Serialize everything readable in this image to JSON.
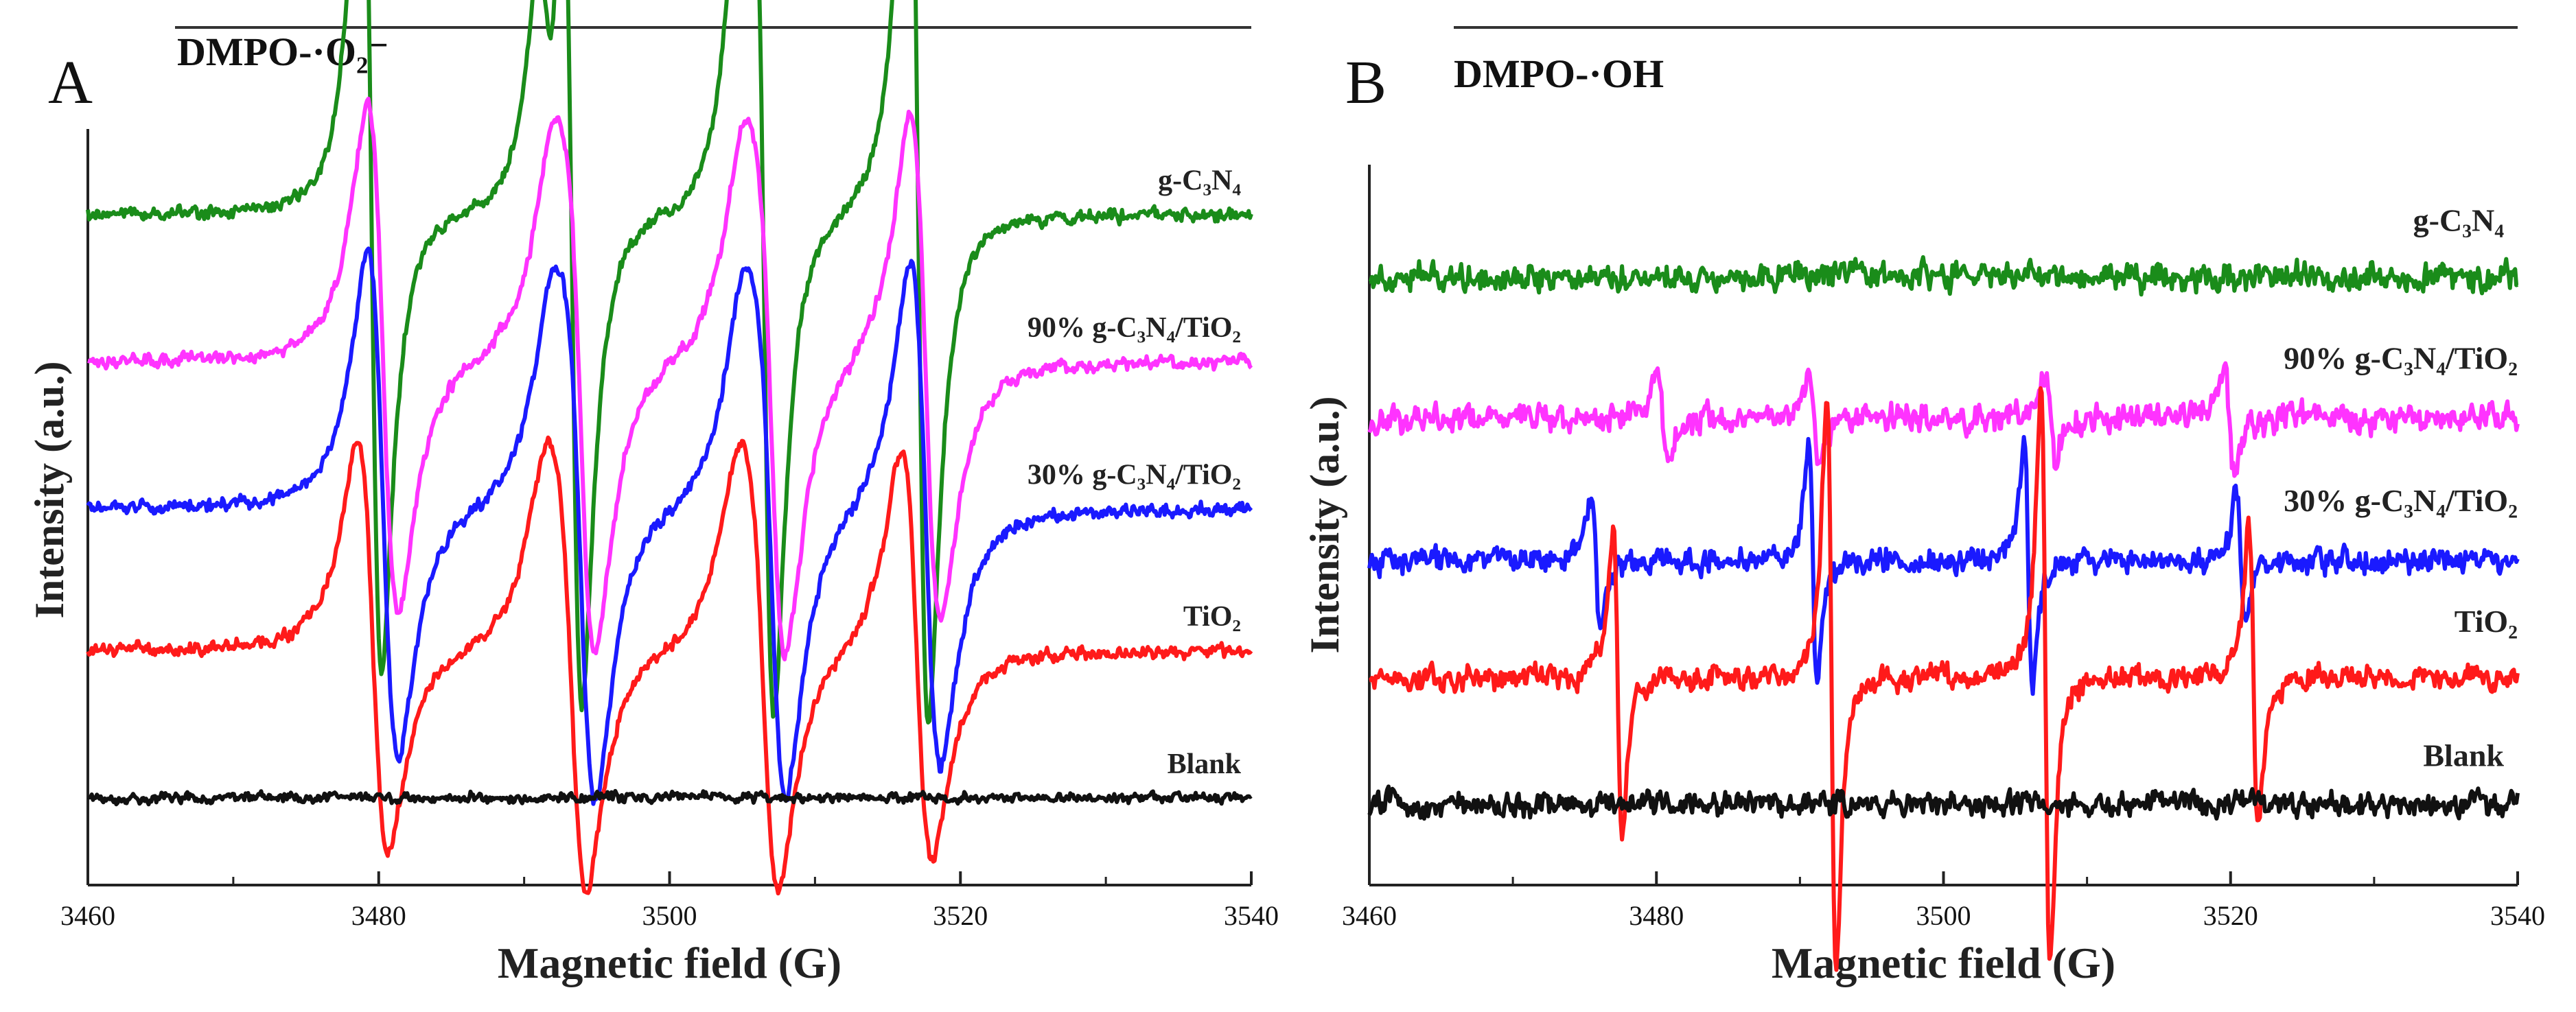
{
  "chart_data": [
    {
      "type": "line",
      "panel_label": "A",
      "title": "DMPO-·O₂⁻",
      "xlabel": "Magnetic field (G)",
      "ylabel": "Intensity (a.u.)",
      "xlim": [
        3460,
        3540
      ],
      "x_ticks": [
        "3460",
        "3480",
        "3500",
        "3520",
        "3540"
      ],
      "grid": false,
      "series": [
        {
          "name": "g-C₃N₄",
          "color": "#1a8c1a",
          "baseline": 1.0,
          "amplitude": 1.0,
          "width": 1.2,
          "noise": 0.008,
          "lines": [
            {
              "c": 3479.5,
              "a": 1.0
            },
            {
              "c": 3493.3,
              "a": 1.0
            },
            {
              "c": 3506.5,
              "a": 1.0
            },
            {
              "c": 3517.1,
              "a": 1.1
            },
            {
              "c": 3491.5,
              "a": 0.3
            },
            {
              "c": 3505.0,
              "a": 0.3
            }
          ]
        },
        {
          "name": "90% g-C₃N₄/TiO₂",
          "color": "#ff33ff",
          "baseline": 0.73,
          "amplitude": 0.55,
          "width": 1.8,
          "noise": 0.008,
          "lines": [
            {
              "c": 3480.3,
              "a": 1.0
            },
            {
              "c": 3493.9,
              "a": 1.0
            },
            {
              "c": 3507.0,
              "a": 1.0
            },
            {
              "c": 3517.6,
              "a": 1.0
            },
            {
              "c": 3492.5,
              "a": 0.3
            },
            {
              "c": 3505.6,
              "a": 0.3
            }
          ]
        },
        {
          "name": "30% g-C₃N₄/TiO₂",
          "color": "#1a1aff",
          "baseline": 0.46,
          "amplitude": 0.55,
          "width": 1.8,
          "noise": 0.008,
          "lines": [
            {
              "c": 3480.3,
              "a": 1.0
            },
            {
              "c": 3493.9,
              "a": 1.0
            },
            {
              "c": 3507.0,
              "a": 1.0
            },
            {
              "c": 3517.6,
              "a": 1.0
            },
            {
              "c": 3492.5,
              "a": 0.3
            },
            {
              "c": 3505.6,
              "a": 0.3
            }
          ]
        },
        {
          "name": "TiO₂",
          "color": "#ff1a1a",
          "baseline": 0.2,
          "amplitude": 0.45,
          "width": 1.8,
          "noise": 0.008,
          "lines": [
            {
              "c": 3479.6,
              "a": 1.0
            },
            {
              "c": 3493.3,
              "a": 1.0
            },
            {
              "c": 3506.5,
              "a": 1.0
            },
            {
              "c": 3517.0,
              "a": 1.0
            },
            {
              "c": 3492.0,
              "a": 0.3
            },
            {
              "c": 3505.2,
              "a": 0.3
            }
          ]
        },
        {
          "name": "Blank",
          "color": "#111111",
          "baseline": -0.07,
          "amplitude": 0.0,
          "width": 1.5,
          "noise": 0.006,
          "lines": []
        }
      ]
    },
    {
      "type": "line",
      "panel_label": "B",
      "title": "DMPO-·OH",
      "xlabel": "Magnetic field (G)",
      "ylabel": "Intensity (a.u.)",
      "xlim": [
        3460,
        3540
      ],
      "x_ticks": [
        "3460",
        "3480",
        "3500",
        "3520",
        "3540"
      ],
      "grid": false,
      "series": [
        {
          "name": "g-C₃N₄",
          "color": "#1a8c1a",
          "baseline": 1.0,
          "amplitude": 0.0,
          "width": 0.6,
          "noise": 0.018,
          "lines": []
        },
        {
          "name": "90% g-C₃N₄/TiO₂",
          "color": "#ff33ff",
          "baseline": 0.72,
          "amplitude": 0.12,
          "width": 0.6,
          "noise": 0.018,
          "lines": [
            {
              "c": 3480.4,
              "a": 1.0
            },
            {
              "c": 3491.0,
              "a": 0.8
            },
            {
              "c": 3507.5,
              "a": 0.8
            },
            {
              "c": 3519.9,
              "a": 1.0
            }
          ]
        },
        {
          "name": "30% g-C₃N₄/TiO₂",
          "color": "#1a1aff",
          "baseline": 0.44,
          "amplitude": 0.28,
          "width": 0.5,
          "noise": 0.016,
          "lines": [
            {
              "c": 3475.8,
              "a": 0.55
            },
            {
              "c": 3490.9,
              "a": 1.0
            },
            {
              "c": 3505.9,
              "a": 1.0
            },
            {
              "c": 3520.7,
              "a": 0.55
            }
          ]
        },
        {
          "name": "TiO₂",
          "color": "#ff1a1a",
          "baseline": 0.21,
          "amplitude": 0.66,
          "width": 0.55,
          "noise": 0.016,
          "lines": [
            {
              "c": 3477.3,
              "a": 0.55
            },
            {
              "c": 3492.2,
              "a": 1.0
            },
            {
              "c": 3507.1,
              "a": 1.0
            },
            {
              "c": 3521.6,
              "a": 0.55
            }
          ]
        },
        {
          "name": "Blank",
          "color": "#111111",
          "baseline": -0.04,
          "amplitude": 0.0,
          "width": 0.6,
          "noise": 0.016,
          "lines": []
        }
      ]
    }
  ]
}
